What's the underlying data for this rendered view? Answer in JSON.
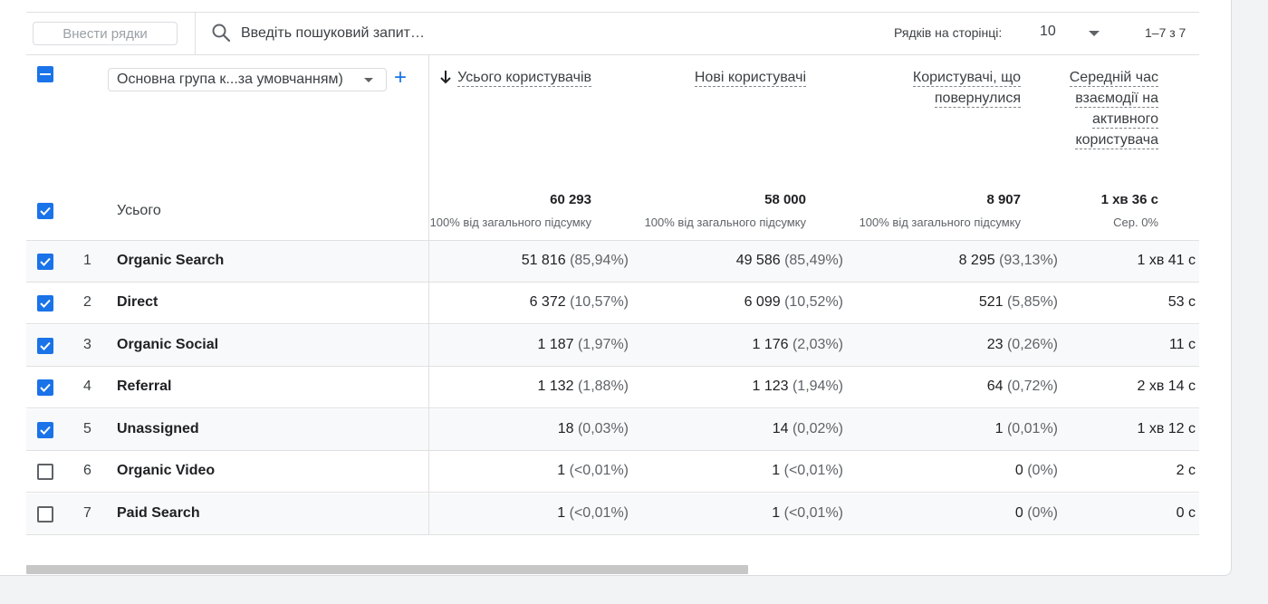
{
  "toolbar": {
    "insert_rows_label": "Внести рядки",
    "search_placeholder": "Введіть пошуковий запит…",
    "rows_per_page_label": "Рядків на сторінці:",
    "rows_per_page_value": "10",
    "page_range": "1–7 з 7"
  },
  "dimension": {
    "select_value": "Основна група к...за умовчанням)",
    "add_icon": "plus-icon"
  },
  "columns": [
    {
      "label": "Усього користувачів",
      "sorted": true,
      "total": "60 293",
      "total_sub": "100% від загального підсумку"
    },
    {
      "label": "Нові користувачі",
      "sorted": false,
      "total": "58 000",
      "total_sub": "100% від загального підсумку"
    },
    {
      "label_lines": [
        "Користувачі, що",
        "повернулися"
      ],
      "sorted": false,
      "total": "8 907",
      "total_sub": "100% від загального підсумку"
    },
    {
      "label_lines": [
        "Середній час",
        "взаємодії на",
        "активного",
        "користувача"
      ],
      "sorted": false,
      "total": "1 хв 36 с",
      "total_sub": "Сер. 0%"
    }
  ],
  "total_label": "Усього",
  "rows": [
    {
      "num": "1",
      "name": "Organic Search",
      "checked": true,
      "c1": "51 816",
      "c1p": "(85,94%)",
      "c2": "49 586",
      "c2p": "(85,49%)",
      "c3": "8 295",
      "c3p": "(93,13%)",
      "c4": "1 хв 41 с"
    },
    {
      "num": "2",
      "name": "Direct",
      "checked": true,
      "c1": "6 372",
      "c1p": "(10,57%)",
      "c2": "6 099",
      "c2p": "(10,52%)",
      "c3": "521",
      "c3p": "(5,85%)",
      "c4": "53 с"
    },
    {
      "num": "3",
      "name": "Organic Social",
      "checked": true,
      "c1": "1 187",
      "c1p": "(1,97%)",
      "c2": "1 176",
      "c2p": "(2,03%)",
      "c3": "23",
      "c3p": "(0,26%)",
      "c4": "11 с"
    },
    {
      "num": "4",
      "name": "Referral",
      "checked": true,
      "c1": "1 132",
      "c1p": "(1,88%)",
      "c2": "1 123",
      "c2p": "(1,94%)",
      "c3": "64",
      "c3p": "(0,72%)",
      "c4": "2 хв 14 с"
    },
    {
      "num": "5",
      "name": "Unassigned",
      "checked": true,
      "c1": "18",
      "c1p": "(0,03%)",
      "c2": "14",
      "c2p": "(0,02%)",
      "c3": "1",
      "c3p": "(0,01%)",
      "c4": "1 хв 12 с"
    },
    {
      "num": "6",
      "name": "Organic Video",
      "checked": false,
      "c1": "1",
      "c1p": "(<0,01%)",
      "c2": "1",
      "c2p": "(<0,01%)",
      "c3": "0",
      "c3p": "(0%)",
      "c4": "2 с"
    },
    {
      "num": "7",
      "name": "Paid Search",
      "checked": false,
      "c1": "1",
      "c1p": "(<0,01%)",
      "c2": "1",
      "c2p": "(<0,01%)",
      "c3": "0",
      "c3p": "(0%)",
      "c4": "0 с"
    }
  ],
  "colors": {
    "accent": "#1a73e8"
  }
}
